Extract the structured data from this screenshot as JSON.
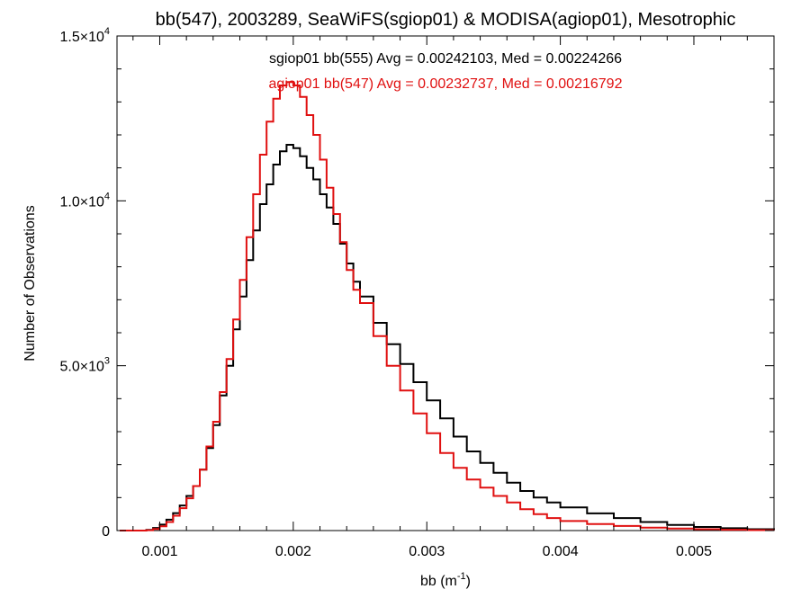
{
  "chart_data": {
    "type": "line",
    "step": true,
    "title": "bb(547), 2003289, SeaWiFS(sgiop01) & MODISA(agiop01), Mesotrophic",
    "xlabel": {
      "base": "bb (m",
      "sup": "-1",
      "tail": ")"
    },
    "ylabel": "Number of Observations",
    "xlim": [
      0.00068,
      0.0056
    ],
    "ylim": [
      0,
      15000
    ],
    "x_ticks": [
      {
        "value": 0.001,
        "label": "0.001"
      },
      {
        "value": 0.002,
        "label": "0.002"
      },
      {
        "value": 0.003,
        "label": "0.003"
      },
      {
        "value": 0.004,
        "label": "0.004"
      },
      {
        "value": 0.005,
        "label": "0.005"
      }
    ],
    "y_ticks": [
      {
        "value": 0,
        "mant": "0",
        "exp": ""
      },
      {
        "value": 5000,
        "mant": "5.0×10",
        "exp": "3"
      },
      {
        "value": 10000,
        "mant": "1.0×10",
        "exp": "4"
      },
      {
        "value": 15000,
        "mant": "1.5×10",
        "exp": "4"
      }
    ],
    "annotations": [
      {
        "text": "sgiop01 bb(555) Avg = 0.00242103, Med = 0.00224266",
        "color": "#000000"
      },
      {
        "text": "agiop01 bb(547) Avg = 0.00232737, Med = 0.00216792",
        "color": "#e01010"
      }
    ],
    "grid": false,
    "legend": "none",
    "series": [
      {
        "color": "#000000",
        "x": [
          0.0007,
          0.0009,
          0.00095,
          0.001,
          0.00105,
          0.0011,
          0.00115,
          0.0012,
          0.00125,
          0.0013,
          0.00135,
          0.0014,
          0.00145,
          0.0015,
          0.00155,
          0.0016,
          0.00165,
          0.0017,
          0.00175,
          0.0018,
          0.00185,
          0.0019,
          0.00195,
          0.002,
          0.00205,
          0.0021,
          0.00215,
          0.0022,
          0.00225,
          0.0023,
          0.00235,
          0.0024,
          0.00245,
          0.0025,
          0.0026,
          0.0027,
          0.0028,
          0.0029,
          0.003,
          0.0031,
          0.0032,
          0.0033,
          0.0034,
          0.0035,
          0.0036,
          0.0037,
          0.0038,
          0.0039,
          0.004,
          0.0042,
          0.0044,
          0.0046,
          0.0048,
          0.005,
          0.0052,
          0.0054,
          0.0056
        ],
        "y": [
          0,
          20,
          80,
          180,
          330,
          530,
          760,
          1050,
          1350,
          1850,
          2500,
          3200,
          4100,
          5000,
          6100,
          7100,
          8200,
          9100,
          9900,
          10500,
          11100,
          11500,
          11700,
          11600,
          11350,
          11000,
          10650,
          10200,
          9800,
          9300,
          8700,
          8100,
          7550,
          7100,
          6300,
          5650,
          5050,
          4500,
          3950,
          3400,
          2850,
          2400,
          2050,
          1750,
          1450,
          1200,
          1000,
          850,
          700,
          520,
          380,
          260,
          170,
          110,
          70,
          40,
          20
        ]
      },
      {
        "color": "#e01010",
        "x": [
          0.0007,
          0.0009,
          0.00095,
          0.001,
          0.00105,
          0.0011,
          0.00115,
          0.0012,
          0.00125,
          0.0013,
          0.00135,
          0.0014,
          0.00145,
          0.0015,
          0.00155,
          0.0016,
          0.00165,
          0.0017,
          0.00175,
          0.0018,
          0.00185,
          0.0019,
          0.00195,
          0.002,
          0.00205,
          0.0021,
          0.00215,
          0.0022,
          0.00225,
          0.0023,
          0.00235,
          0.0024,
          0.00245,
          0.0025,
          0.0026,
          0.0027,
          0.0028,
          0.0029,
          0.003,
          0.0031,
          0.0032,
          0.0033,
          0.0034,
          0.0035,
          0.0036,
          0.0037,
          0.0038,
          0.0039,
          0.004,
          0.0042,
          0.0044,
          0.0046,
          0.0048,
          0.005,
          0.0052,
          0.0054,
          0.0056
        ],
        "y": [
          0,
          10,
          50,
          130,
          260,
          450,
          680,
          980,
          1350,
          1850,
          2550,
          3300,
          4200,
          5200,
          6400,
          7600,
          8900,
          10200,
          11400,
          12400,
          13100,
          13500,
          13600,
          13500,
          13150,
          12600,
          12000,
          11250,
          10400,
          9600,
          8750,
          7900,
          7300,
          6900,
          5900,
          5000,
          4250,
          3550,
          2950,
          2350,
          1900,
          1550,
          1300,
          1050,
          850,
          650,
          500,
          380,
          290,
          200,
          140,
          90,
          60,
          40,
          25,
          15,
          10
        ]
      }
    ]
  }
}
